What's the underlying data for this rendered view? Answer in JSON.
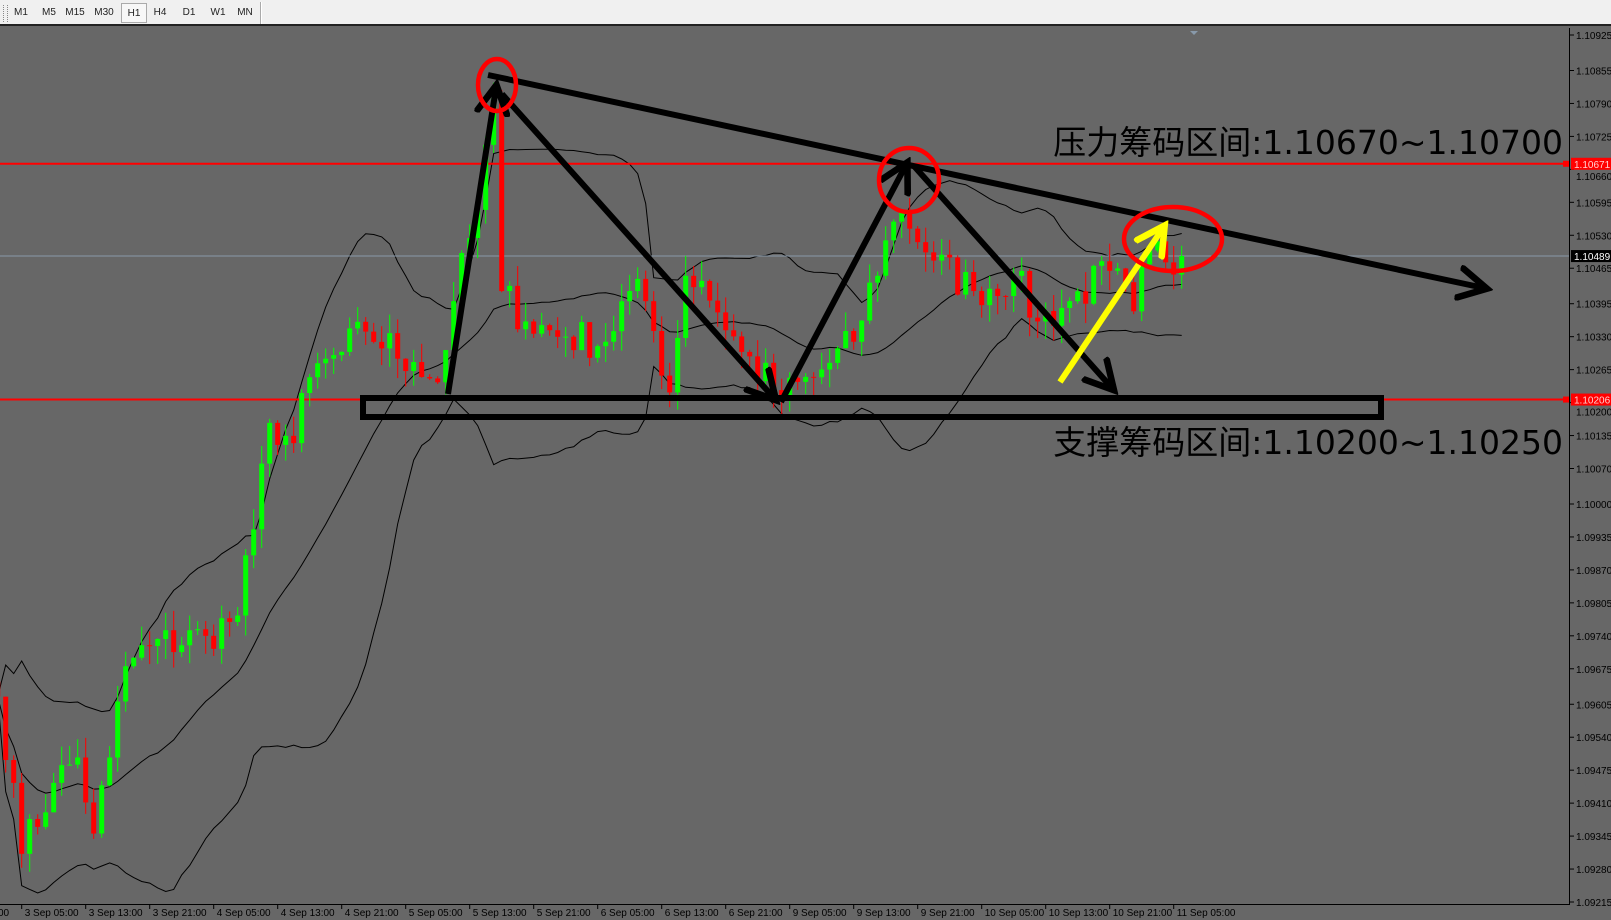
{
  "toolbar": {
    "timeframes": [
      "M1",
      "M5",
      "M15",
      "M30",
      "H1",
      "H4",
      "D1",
      "W1",
      "MN"
    ],
    "active": "H1"
  },
  "colors": {
    "background": "#676767",
    "bull_candle": "#00ff00",
    "bear_candle": "#ff0000",
    "level_line": "#ff0000",
    "bands": "#000000",
    "annotation_arrow": "#000000",
    "annotation_circle": "#ff0000",
    "highlight_arrow": "#ffff00",
    "bid_line": "#8899aa"
  },
  "annotations": {
    "resistance_text": "压力筹码区间:1.10670~1.10700",
    "support_text": "支撑筹码区间:1.10200~1.10250"
  },
  "chart_data": {
    "type": "candlestick",
    "indicator": "Bollinger Bands",
    "ylim": [
      1.09215,
      1.10925
    ],
    "y_ticks": [
      "1.10925",
      "1.10855",
      "1.10790",
      "1.10725",
      "1.10660",
      "1.10595",
      "1.10530",
      "1.10465",
      "1.10395",
      "1.10330",
      "1.10265",
      "1.10200",
      "1.10135",
      "1.10070",
      "1.10000",
      "1.09935",
      "1.09870",
      "1.09805",
      "1.09740",
      "1.09675",
      "1.09605",
      "1.09540",
      "1.09475",
      "1.09410",
      "1.09345",
      "1.09280",
      "1.09215"
    ],
    "x_ticks": [
      "3 Sep 05:00",
      "3 Sep 13:00",
      "3 Sep 21:00",
      "4 Sep 05:00",
      "4 Sep 13:00",
      "4 Sep 21:00",
      "5 Sep 05:00",
      "5 Sep 13:00",
      "5 Sep 21:00",
      "6 Sep 05:00",
      "6 Sep 13:00",
      "6 Sep 21:00",
      "9 Sep 05:00",
      "9 Sep 13:00",
      "9 Sep 21:00",
      "10 Sep 05:00",
      "10 Sep 13:00",
      "10 Sep 21:00",
      "11 Sep 05:00"
    ],
    "x_tick_cut_left": "00",
    "levels": [
      {
        "label": "1.10671",
        "value": 1.10671
      },
      {
        "label": "1.10206",
        "value": 1.10206
      }
    ],
    "current_price": {
      "label": "1.10489",
      "value": 1.10489
    },
    "close_path": [
      [
        "3 Sep 02:00",
        1.0962
      ],
      [
        "3 Sep 04:00",
        1.0945
      ],
      [
        "3 Sep 05:00",
        1.0931
      ],
      [
        "3 Sep 09:00",
        1.0945
      ],
      [
        "3 Sep 12:00",
        1.095
      ],
      [
        "3 Sep 14:00",
        1.0935
      ],
      [
        "3 Sep 16:00",
        1.095
      ],
      [
        "3 Sep 18:00",
        1.0968
      ],
      [
        "3 Sep 21:00",
        1.0972
      ],
      [
        "4 Sep 04:00",
        1.0974
      ],
      [
        "4 Sep 08:00",
        1.0978
      ],
      [
        "4 Sep 10:00",
        1.0995
      ],
      [
        "4 Sep 12:00",
        1.1016
      ],
      [
        "4 Sep 15:00",
        1.1012
      ],
      [
        "4 Sep 17:00",
        1.1025
      ],
      [
        "4 Sep 21:00",
        1.103
      ],
      [
        "5 Sep 00:00",
        1.1034
      ],
      [
        "5 Sep 06:00",
        1.1028
      ],
      [
        "5 Sep 09:00",
        1.1024
      ],
      [
        "5 Sep 11:00",
        1.104
      ],
      [
        "5 Sep 14:00",
        1.1058
      ],
      [
        "5 Sep 16:00",
        1.108
      ],
      [
        "5 Sep 17:00",
        1.1042
      ],
      [
        "5 Sep 20:00",
        1.1036
      ],
      [
        "6 Sep 01:00",
        1.1033
      ],
      [
        "6 Sep 06:00",
        1.1032
      ],
      [
        "6 Sep 09:00",
        1.1042
      ],
      [
        "6 Sep 11:00",
        1.104
      ],
      [
        "6 Sep 14:00",
        1.1022
      ],
      [
        "6 Sep 16:00",
        1.1045
      ],
      [
        "6 Sep 18:00",
        1.1044
      ],
      [
        "6 Sep 23:00",
        1.103
      ],
      [
        "9 Sep 04:00",
        1.1021
      ],
      [
        "9 Sep 08:00",
        1.1025
      ],
      [
        "9 Sep 13:00",
        1.1032
      ],
      [
        "9 Sep 17:00",
        1.1052
      ],
      [
        "9 Sep 19:00",
        1.1058
      ],
      [
        "9 Sep 23:00",
        1.1048
      ],
      [
        "10 Sep 04:00",
        1.1042
      ],
      [
        "10 Sep 09:00",
        1.1045
      ],
      [
        "10 Sep 12:00",
        1.1036
      ],
      [
        "10 Sep 16:00",
        1.104
      ],
      [
        "10 Sep 21:00",
        1.1046
      ],
      [
        "11 Sep 00:00",
        1.1038
      ],
      [
        "11 Sep 02:00",
        1.105
      ],
      [
        "11 Sep 06:00",
        1.10489
      ]
    ]
  }
}
